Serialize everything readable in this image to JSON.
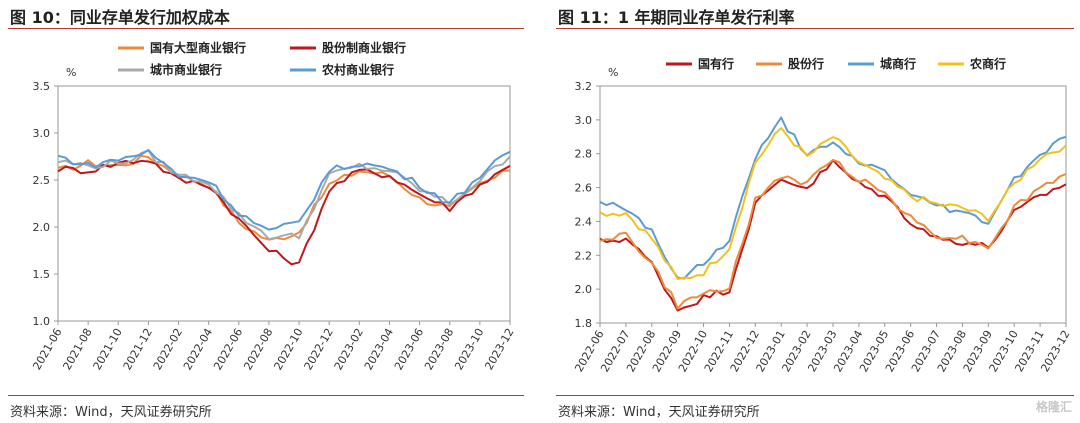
{
  "left": {
    "title": "图 10：同业存单发行加权成本",
    "source": "资料来源：Wind，天风证券研究所"
  },
  "right": {
    "title": "图 11：1 年期同业存单发行利率",
    "source": "资料来源：Wind，天风证券研究所"
  },
  "watermark": "格隆汇",
  "chart_data": [
    {
      "type": "line",
      "title": "图 10：同业存单发行加权成本",
      "ylabel": "%",
      "ylim": [
        1.0,
        3.5
      ],
      "yticks": [
        "1.0",
        "1.5",
        "2.0",
        "2.5",
        "3.0",
        "3.5"
      ],
      "categories": [
        "2021-06",
        "2021-08",
        "2021-10",
        "2021-12",
        "2022-02",
        "2022-04",
        "2022-06",
        "2022-08",
        "2022-10",
        "2022-12",
        "2023-02",
        "2023-04",
        "2023-06",
        "2023-08",
        "2023-10",
        "2023-12"
      ],
      "legend_position": "top",
      "series": [
        {
          "name": "国有大型商业银行",
          "color": "#ed8a3c",
          "values": [
            2.6,
            2.68,
            2.65,
            2.75,
            2.55,
            2.45,
            2.05,
            1.85,
            1.95,
            2.45,
            2.6,
            2.55,
            2.3,
            2.2,
            2.45,
            2.6
          ]
        },
        {
          "name": "股份制商业银行",
          "color": "#c0171c",
          "values": [
            2.62,
            2.6,
            2.68,
            2.72,
            2.5,
            2.45,
            2.08,
            1.75,
            1.6,
            2.4,
            2.6,
            2.55,
            2.35,
            2.2,
            2.45,
            2.65
          ]
        },
        {
          "name": "城市商业银行",
          "color": "#a9a9a9",
          "values": [
            2.7,
            2.65,
            2.68,
            2.78,
            2.55,
            2.48,
            2.12,
            1.9,
            1.9,
            2.55,
            2.65,
            2.6,
            2.4,
            2.25,
            2.5,
            2.75
          ]
        },
        {
          "name": "农村商业银行",
          "color": "#5b9bd5",
          "values": [
            2.75,
            2.65,
            2.72,
            2.8,
            2.55,
            2.5,
            2.15,
            1.95,
            2.05,
            2.6,
            2.68,
            2.62,
            2.45,
            2.25,
            2.55,
            2.8
          ]
        }
      ]
    },
    {
      "type": "line",
      "title": "图 11：1 年期同业存单发行利率",
      "ylabel": "%",
      "ylim": [
        1.8,
        3.2
      ],
      "yticks": [
        "1.8",
        "2.0",
        "2.2",
        "2.4",
        "2.6",
        "2.8",
        "3.0",
        "3.2"
      ],
      "categories": [
        "2022-06",
        "2022-07",
        "2022-08",
        "2022-09",
        "2022-10",
        "2022-11",
        "2022-12",
        "2023-01",
        "2023-02",
        "2023-03",
        "2023-04",
        "2023-05",
        "2023-06",
        "2023-07",
        "2023-08",
        "2023-09",
        "2023-10",
        "2023-11",
        "2023-12"
      ],
      "legend_position": "top",
      "series": [
        {
          "name": "国有行",
          "color": "#c0171c",
          "values": [
            2.28,
            2.3,
            2.15,
            1.88,
            1.95,
            2.0,
            2.5,
            2.65,
            2.6,
            2.75,
            2.62,
            2.55,
            2.4,
            2.3,
            2.28,
            2.25,
            2.45,
            2.55,
            2.62
          ]
        },
        {
          "name": "股份行",
          "color": "#ed8a3c",
          "values": [
            2.3,
            2.32,
            2.15,
            1.9,
            1.97,
            2.02,
            2.52,
            2.67,
            2.62,
            2.77,
            2.65,
            2.57,
            2.42,
            2.32,
            2.3,
            2.25,
            2.48,
            2.6,
            2.68
          ]
        },
        {
          "name": "城商行",
          "color": "#5b9bd5",
          "values": [
            2.52,
            2.48,
            2.35,
            2.05,
            2.15,
            2.3,
            2.78,
            3.0,
            2.8,
            2.85,
            2.75,
            2.7,
            2.55,
            2.5,
            2.45,
            2.4,
            2.65,
            2.8,
            2.9
          ]
        },
        {
          "name": "农商行",
          "color": "#f2c11b",
          "values": [
            2.45,
            2.45,
            2.3,
            2.05,
            2.1,
            2.25,
            2.75,
            2.95,
            2.78,
            2.9,
            2.75,
            2.65,
            2.55,
            2.5,
            2.48,
            2.42,
            2.62,
            2.78,
            2.85
          ]
        }
      ]
    }
  ]
}
